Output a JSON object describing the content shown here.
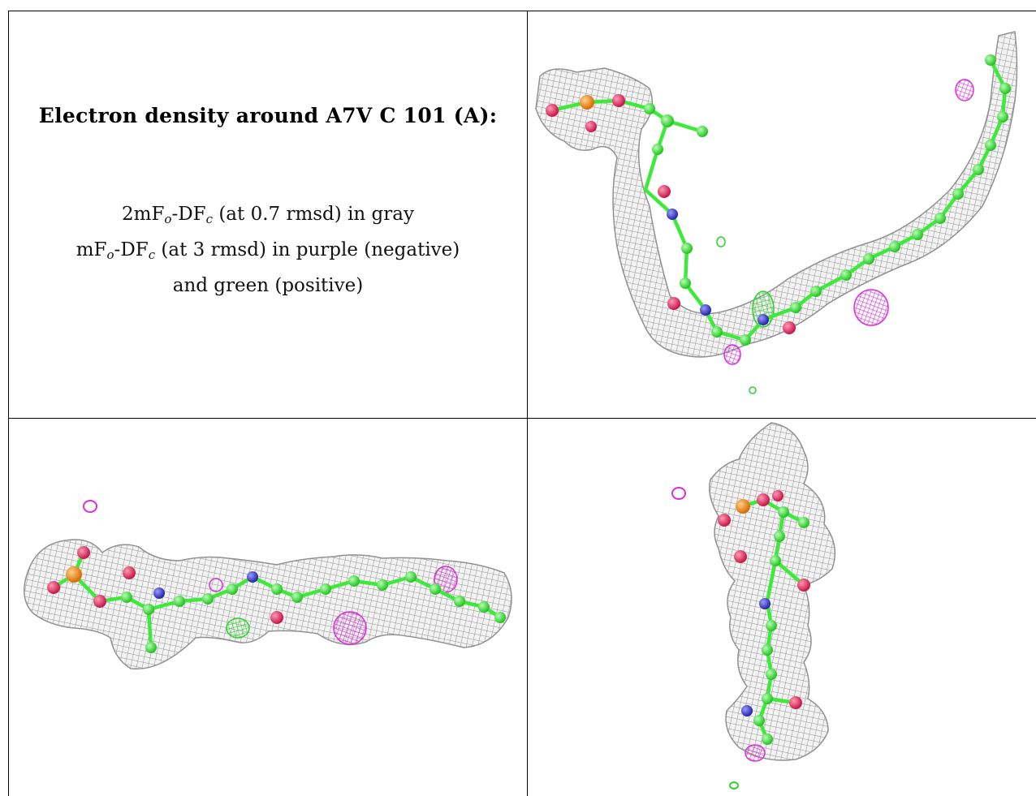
{
  "caption": {
    "title": "Electron density around A7V C 101 (A):",
    "line1_lead": "2mF",
    "line1_sub_o": "o",
    "line1_mid": "-DF",
    "line1_sub_c": "c",
    "line1_tail": " (at 0.7 rmsd) in gray",
    "line2_lead": "mF",
    "line2_sub_o": "o",
    "line2_mid": "-DF",
    "line2_sub_c": "c",
    "line2_tail": " (at 3 rmsd) in purple (negative)",
    "line3": "and green (positive)"
  },
  "colors": {
    "mesh_2fo": "#9a9a9a",
    "negative": "#d630d6",
    "positive": "#2fd12f",
    "carbon": "#3dea3a",
    "oxygen": "#e02a5a",
    "nitrogen": "#3a3ad0",
    "phosphorus": "#f08a10"
  },
  "panels": [
    {
      "name": "view-top-right",
      "icon": "density-mesh-icon"
    },
    {
      "name": "view-bottom-left",
      "icon": "density-mesh-icon"
    },
    {
      "name": "view-bottom-right",
      "icon": "density-mesh-icon"
    }
  ]
}
